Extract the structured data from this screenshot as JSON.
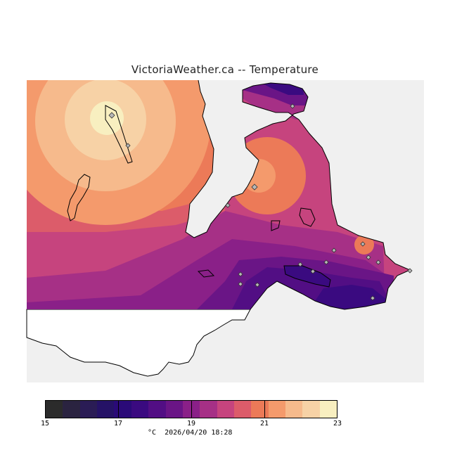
{
  "title": "VictoriaWeather.ca -- Temperature",
  "legend": {
    "unit": "°C",
    "timestamp": "2026/04/20 18:28",
    "tick_labels": [
      "15",
      "17",
      "19",
      "21",
      "23"
    ],
    "min": 15,
    "max": 23,
    "step": 0.5,
    "colors": [
      "#2b2b2b",
      "#2a2340",
      "#2a1c55",
      "#251266",
      "#2a0a78",
      "#3a0a80",
      "#520e84",
      "#6a1586",
      "#8a2088",
      "#a63086",
      "#c6447e",
      "#dc5c6a",
      "#ec7a58",
      "#f49a6c",
      "#f6ba8c",
      "#f7d2a6",
      "#f8efc0"
    ]
  },
  "map": {
    "land_color": "#ffffff",
    "water_color": "#f0f0f0",
    "coastline_color": "#000000",
    "station_marker": "diamond-icon",
    "station_count": 17
  }
}
